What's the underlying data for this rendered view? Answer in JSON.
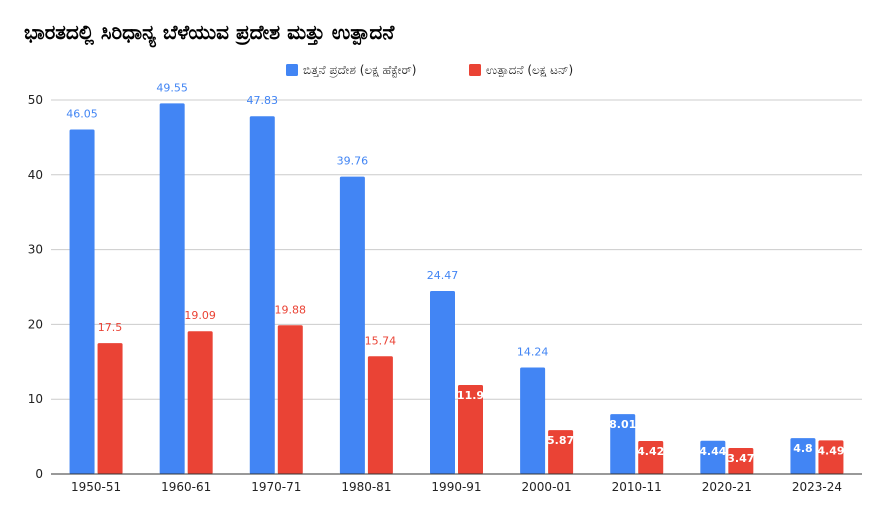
{
  "chart_data": {
    "type": "bar",
    "title": "ಭಾರತದಲ್ಲಿ ಸಿರಿಧಾನ್ಯ ಬೆಳೆಯುವ ಪ್ರದೇಶ ಮತ್ತು ಉತ್ಪಾದನೆ",
    "categories": [
      "1950-51",
      "1960-61",
      "1970-71",
      "1980-81",
      "1990-91",
      "2000-01",
      "2010-11",
      "2020-21",
      "2023-24"
    ],
    "series": [
      {
        "name": "ಬಿತ್ತನೆ ಪ್ರದೇಶ (ಲಕ್ಷ ಹೆಕ್ಟೇರ್)",
        "color": "#4285f4",
        "values": [
          46.05,
          49.55,
          47.83,
          39.76,
          24.47,
          14.24,
          8.01,
          4.44,
          4.8
        ]
      },
      {
        "name": "ಉತ್ಪಾದನೆ (ಲಕ್ಷ ಟನ್)",
        "color": "#ea4335",
        "values": [
          17.5,
          19.09,
          19.88,
          15.74,
          11.9,
          5.87,
          4.42,
          3.47,
          4.49
        ]
      }
    ],
    "ylim": [
      0,
      50
    ],
    "yticks": [
      0,
      10,
      20,
      30,
      40,
      50
    ],
    "grid": true,
    "legend_position": "top-center",
    "xlabel": "",
    "ylabel": ""
  }
}
